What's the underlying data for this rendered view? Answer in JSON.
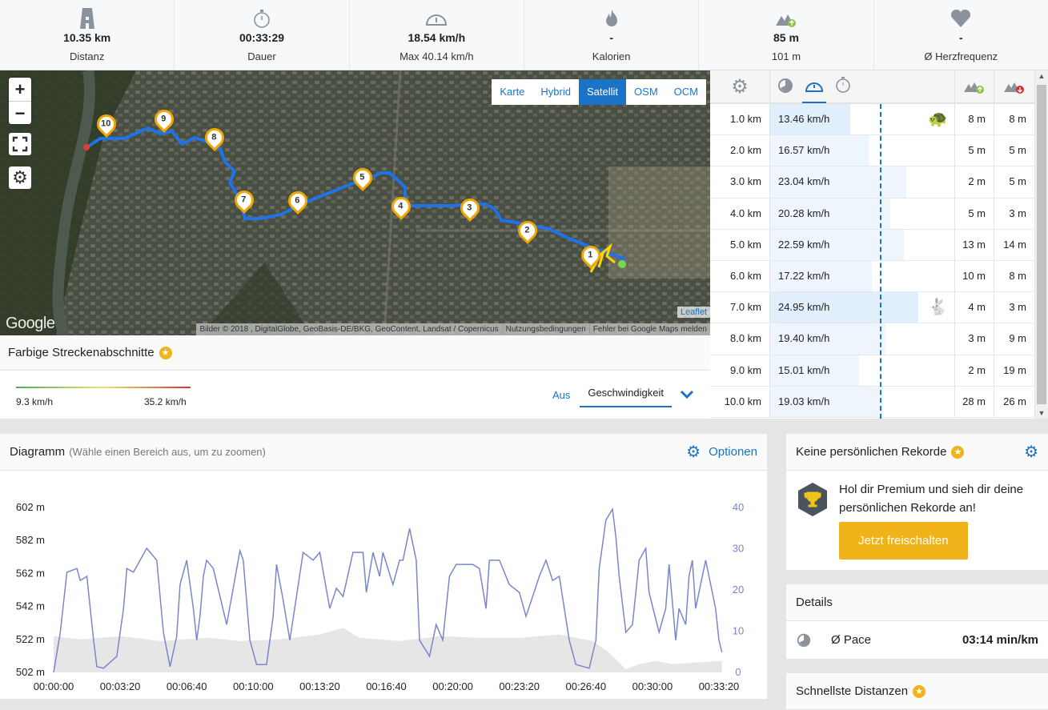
{
  "stats": [
    {
      "icon": "road-icon",
      "value": "10.35 km",
      "label": "Distanz"
    },
    {
      "icon": "stopwatch-icon",
      "value": "00:33:29",
      "label": "Dauer"
    },
    {
      "icon": "speedometer-icon",
      "value": "18.54 km/h",
      "label": "Max 40.14 km/h"
    },
    {
      "icon": "flame-icon",
      "value": "-",
      "label": "Kalorien"
    },
    {
      "icon": "ascent-icon",
      "value": "85 m",
      "label": "101 m"
    },
    {
      "icon": "heart-icon",
      "value": "-",
      "label": "Ø Herzfrequenz"
    }
  ],
  "map": {
    "layers": [
      "Karte",
      "Hybrid",
      "Satellit",
      "OSM",
      "OCM"
    ],
    "active_layer": "Satellit",
    "zoom_in": "+",
    "zoom_out": "−",
    "markers": [
      "1",
      "2",
      "3",
      "4",
      "5",
      "6",
      "7",
      "8",
      "9",
      "10"
    ],
    "logo": "Google",
    "leaflet": "Leaflet",
    "attribution": [
      "Bilder © 2018 , DigitalGlobe, GeoBasis-DE/BKG, GeoContent, Landsat / Copernicus",
      "Nutzungsbedingungen",
      "Fehler bei Google Maps melden"
    ]
  },
  "segments": {
    "title": "Farbige Streckenabschnitte",
    "min": "9.3 km/h",
    "max": "35.2 km/h",
    "off": "Aus",
    "selected": "Geschwindigkeit"
  },
  "splits": {
    "avg_speed": 18.54,
    "rows": [
      {
        "km": "1.0 km",
        "speed": "13.46 km/h",
        "v": 13.46,
        "up": "8 m",
        "down": "8 m",
        "badge": "turtle"
      },
      {
        "km": "2.0 km",
        "speed": "16.57 km/h",
        "v": 16.57,
        "up": "5 m",
        "down": "5 m"
      },
      {
        "km": "3.0 km",
        "speed": "23.04 km/h",
        "v": 23.04,
        "up": "2 m",
        "down": "5 m"
      },
      {
        "km": "4.0 km",
        "speed": "20.28 km/h",
        "v": 20.28,
        "up": "5 m",
        "down": "3 m"
      },
      {
        "km": "5.0 km",
        "speed": "22.59 km/h",
        "v": 22.59,
        "up": "13 m",
        "down": "14 m"
      },
      {
        "km": "6.0 km",
        "speed": "17.22 km/h",
        "v": 17.22,
        "up": "10 m",
        "down": "8 m"
      },
      {
        "km": "7.0 km",
        "speed": "24.95 km/h",
        "v": 24.95,
        "up": "4 m",
        "down": "3 m",
        "badge": "rabbit"
      },
      {
        "km": "8.0 km",
        "speed": "19.40 km/h",
        "v": 19.4,
        "up": "3 m",
        "down": "9 m"
      },
      {
        "km": "9.0 km",
        "speed": "15.01 km/h",
        "v": 15.01,
        "up": "2 m",
        "down": "19 m"
      },
      {
        "km": "10.0 km",
        "speed": "19.03 km/h",
        "v": 19.03,
        "up": "28 m",
        "down": "26 m"
      }
    ]
  },
  "diagram": {
    "title": "Diagramm",
    "hint": "(Wähle einen Bereich aus, um zu zoomen)",
    "options": "Optionen"
  },
  "chart_data": {
    "type": "line",
    "xlabel": "",
    "ylabel": "",
    "x_range_s": [
      0,
      2009
    ],
    "x_ticks": [
      "00:00:00",
      "00:03:20",
      "00:06:40",
      "00:10:00",
      "00:13:20",
      "00:16:40",
      "00:20:00",
      "00:23:20",
      "00:26:40",
      "00:30:00",
      "00:33:20"
    ],
    "y_left_ticks": [
      "502 m",
      "522 m",
      "542 m",
      "562 m",
      "582 m",
      "602 m"
    ],
    "y_left_range": [
      502,
      602
    ],
    "y_right_ticks": [
      "0",
      "10",
      "20",
      "30",
      "40"
    ],
    "y_right_range": [
      0,
      40
    ],
    "series": [
      {
        "name": "Höhe",
        "unit": "m",
        "type": "area",
        "color": "#e6e6e6",
        "t": [
          0,
          80,
          200,
          320,
          465,
          560,
          680,
          800,
          870,
          920,
          1040,
          1160,
          1280,
          1400,
          1520,
          1620,
          1670,
          1720,
          1760,
          1810,
          1860,
          1930,
          2009
        ],
        "values": [
          524,
          522,
          524,
          521,
          523,
          521,
          522,
          525,
          529,
          523,
          521,
          524,
          523,
          523,
          525,
          521,
          514,
          504,
          507,
          509,
          507,
          508,
          509
        ]
      },
      {
        "name": "Geschwindigkeit",
        "unit": "km/h",
        "type": "line",
        "color": "#7986cb",
        "t": [
          0,
          20,
          40,
          70,
          80,
          100,
          120,
          130,
          150,
          190,
          210,
          220,
          240,
          260,
          280,
          310,
          330,
          350,
          370,
          380,
          400,
          420,
          430,
          440,
          450,
          460,
          480,
          500,
          520,
          560,
          570,
          590,
          610,
          640,
          660,
          670,
          690,
          710,
          730,
          750,
          780,
          800,
          830,
          850,
          870,
          900,
          930,
          940,
          960,
          980,
          990,
          1020,
          1040,
          1050,
          1070,
          1090,
          1100,
          1130,
          1150,
          1170,
          1190,
          1210,
          1260,
          1280,
          1300,
          1310,
          1340,
          1370,
          1400,
          1420,
          1440,
          1460,
          1480,
          1500,
          1520,
          1550,
          1570,
          1610,
          1630,
          1640,
          1650,
          1660,
          1680,
          1690,
          1700,
          1720,
          1740,
          1760,
          1780,
          1790,
          1820,
          1840,
          1850,
          1870,
          1880,
          1900,
          1910,
          1920,
          1930,
          1950,
          1960,
          1980,
          1990,
          2000,
          2009
        ],
        "values": [
          0,
          9.7,
          24.3,
          25.2,
          22.3,
          23.3,
          7.8,
          1.4,
          1.0,
          3.9,
          15.5,
          25.2,
          24.3,
          27.2,
          30.1,
          27.2,
          9.7,
          1.4,
          8.7,
          21.3,
          27.2,
          15.5,
          7.8,
          13.6,
          23.3,
          27.2,
          25.2,
          18.4,
          11.6,
          29.5,
          27.2,
          7.8,
          1.9,
          1.9,
          13.6,
          26.2,
          17.5,
          7.8,
          18.4,
          29.1,
          27.2,
          29.1,
          15.5,
          20.4,
          18.4,
          29.1,
          29.1,
          19.4,
          29.1,
          23.3,
          29.1,
          21.3,
          27.2,
          27.2,
          34.9,
          27.2,
          7.8,
          3.9,
          11.6,
          7.8,
          23.3,
          26.2,
          26.2,
          25.2,
          15.5,
          27.2,
          27.2,
          21.3,
          19.4,
          13.6,
          18.4,
          23.3,
          27.2,
          22.3,
          23.3,
          7.8,
          1.9,
          1.0,
          7.8,
          25.2,
          31.0,
          36.9,
          39.6,
          33.0,
          23.3,
          9.7,
          11.6,
          27.2,
          30.1,
          19.4,
          9.7,
          15.5,
          26.2,
          7.8,
          15.5,
          11.6,
          23.3,
          27.2,
          15.5,
          23.3,
          27.2,
          19.4,
          15.5,
          7.8,
          4.9
        ]
      }
    ]
  },
  "records": {
    "title": "Keine persönlichen Rekorde",
    "text": "Hol dir Premium und sieh dir deine persönlichen Rekorde an!",
    "button": "Jetzt freischalten"
  },
  "details": {
    "title": "Details",
    "pace_label": "Ø Pace",
    "pace_value": "03:14 min/km"
  },
  "fastest": {
    "title": "Schnellste Distanzen"
  }
}
